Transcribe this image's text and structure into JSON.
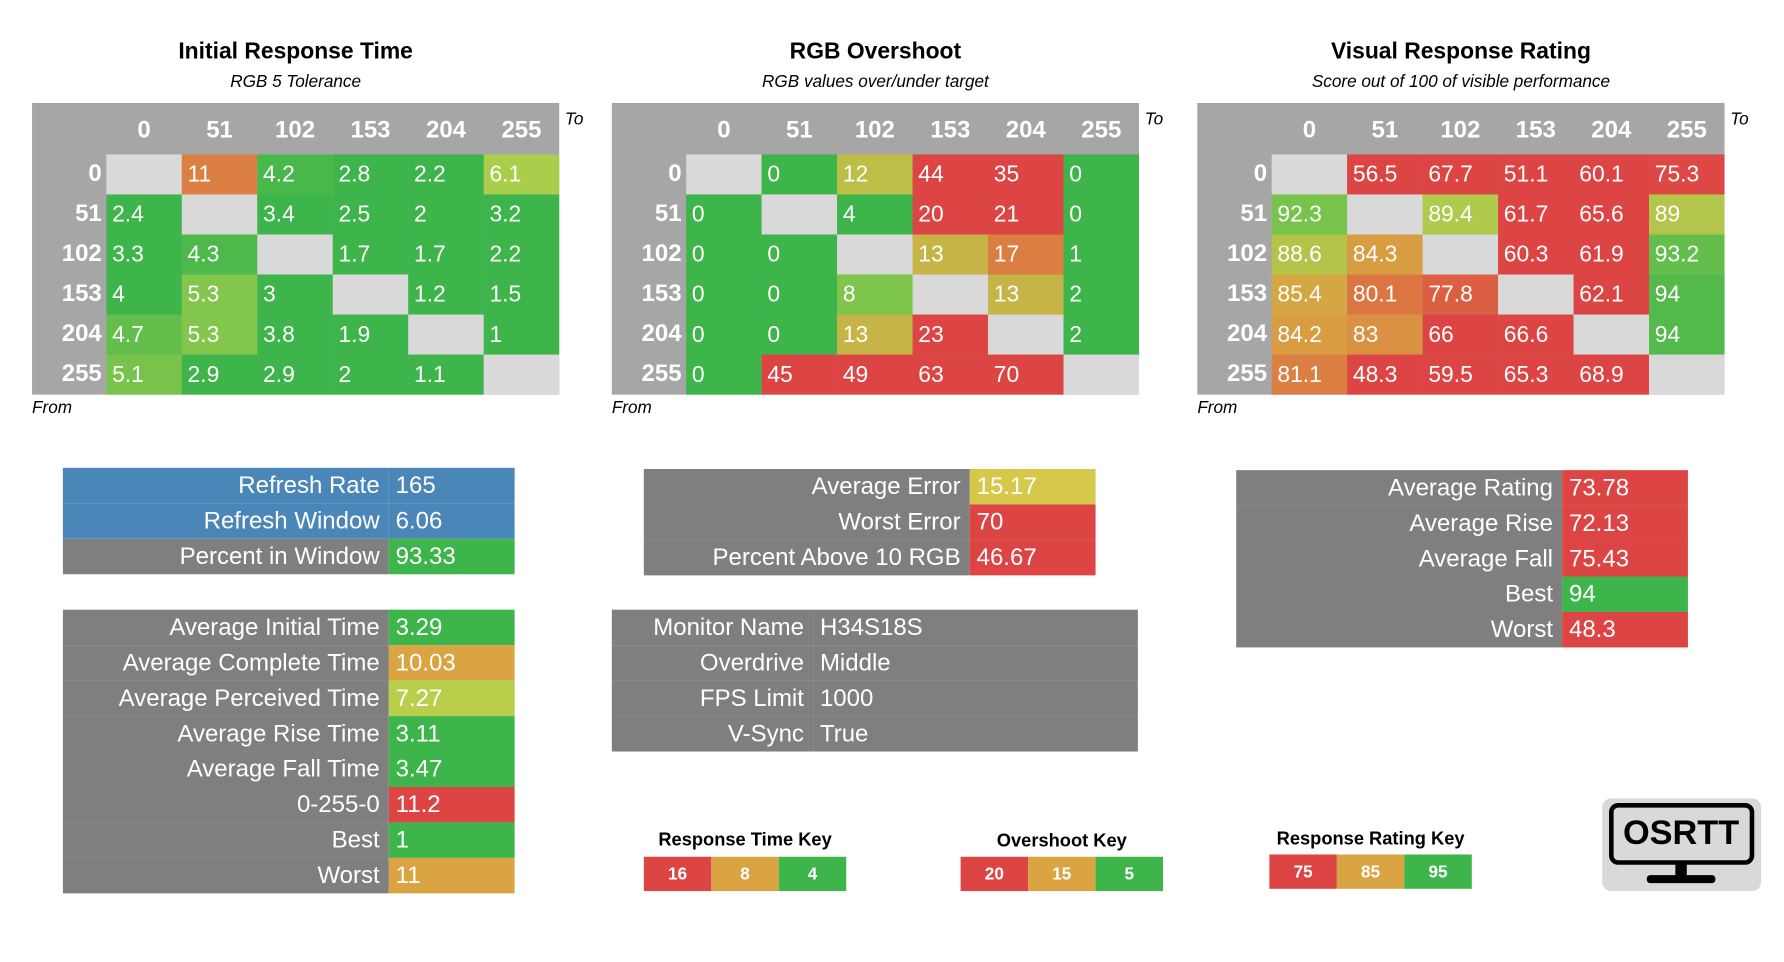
{
  "keys": [
    {
      "title": "Response Time Key",
      "values": [
        16,
        8,
        4
      ],
      "colors": [
        "#dd4444",
        "#d9a441",
        "#3db54b"
      ]
    },
    {
      "title": "Overshoot Key",
      "values": [
        20,
        15,
        5
      ],
      "colors": [
        "#dd4444",
        "#d9a441",
        "#3db54b"
      ]
    },
    {
      "title": "Response Rating Key",
      "values": [
        75,
        85,
        95
      ],
      "colors": [
        "#dd4444",
        "#d9a441",
        "#3db54b"
      ]
    }
  ],
  "matrices": [
    {
      "title": "Initial Response Time",
      "subtitle": "RGB 5 Tolerance",
      "to_label": "To",
      "from_label": "From",
      "key": 0,
      "levels": [
        0,
        51,
        102,
        153,
        204,
        255
      ],
      "rows": [
        [
          null,
          11,
          4.2,
          2.8,
          2.2,
          6.1
        ],
        [
          2.4,
          null,
          3.4,
          2.5,
          2,
          3.2
        ],
        [
          3.3,
          4.3,
          null,
          1.7,
          1.7,
          2.2
        ],
        [
          4,
          5.3,
          3,
          null,
          1.2,
          1.5
        ],
        [
          4.7,
          5.3,
          3.8,
          1.9,
          null,
          1
        ],
        [
          5.1,
          2.9,
          2.9,
          2,
          1.1,
          null
        ]
      ]
    },
    {
      "title": "RGB Overshoot",
      "subtitle": "RGB values over/under target",
      "to_label": "To",
      "from_label": "From",
      "key": 1,
      "levels": [
        0,
        51,
        102,
        153,
        204,
        255
      ],
      "rows": [
        [
          null,
          0,
          12,
          44,
          35,
          0
        ],
        [
          0,
          null,
          4,
          20,
          21,
          0
        ],
        [
          0,
          0,
          null,
          13,
          17,
          1
        ],
        [
          0,
          0,
          8,
          null,
          13,
          2
        ],
        [
          0,
          0,
          13,
          23,
          null,
          2
        ],
        [
          0,
          45,
          49,
          63,
          70,
          null
        ]
      ]
    },
    {
      "title": "Visual Response Rating",
      "subtitle": "Score out of 100 of visible performance",
      "to_label": "To",
      "from_label": "From",
      "key": 2,
      "levels": [
        0,
        51,
        102,
        153,
        204,
        255
      ],
      "rows": [
        [
          null,
          56.5,
          67.7,
          51.1,
          60.1,
          75.3
        ],
        [
          92.3,
          null,
          89.4,
          61.7,
          65.6,
          89
        ],
        [
          88.6,
          84.3,
          null,
          60.3,
          61.9,
          93.2
        ],
        [
          85.4,
          80.1,
          77.8,
          null,
          62.1,
          94
        ],
        [
          84.2,
          83,
          66,
          66.6,
          null,
          94
        ],
        [
          81.1,
          48.3,
          59.5,
          65.3,
          68.9,
          null
        ]
      ]
    }
  ],
  "stats": [
    {
      "rows": [
        {
          "label": "Refresh Rate",
          "value": 165,
          "color": "#4a86b8",
          "row_color": "#4a86b8"
        },
        {
          "label": "Refresh Window",
          "value": 6.06,
          "color": "#4a86b8",
          "row_color": "#4a86b8"
        },
        {
          "label": "Percent in Window",
          "value": 93.33,
          "color": "#3db54b"
        }
      ]
    },
    {
      "rows": [
        {
          "label": "Average Initial Time",
          "value": 3.29,
          "color": "#3db54b"
        },
        {
          "label": "Average Complete Time",
          "value": 10.03,
          "color": "#d9a441"
        },
        {
          "label": "Average Perceived Time",
          "value": 7.27,
          "color": "#b9cf4c"
        },
        {
          "label": "Average Rise Time",
          "value": 3.11,
          "color": "#3db54b"
        },
        {
          "label": "Average Fall Time",
          "value": 3.47,
          "color": "#3db54b"
        },
        {
          "label": "0-255-0",
          "value": 11.2,
          "color": "#dd4444"
        },
        {
          "label": "Best",
          "value": 1,
          "color": "#3db54b"
        },
        {
          "label": "Worst",
          "value": 11,
          "color": "#d9a441"
        }
      ]
    },
    {
      "rows": [
        {
          "label": "Average Error",
          "value": 15.17,
          "color": "#d6c84a"
        },
        {
          "label": "Worst Error",
          "value": 70,
          "color": "#dd4444"
        },
        {
          "label": "Percent Above 10 RGB",
          "value": 46.67,
          "color": "#dd4444"
        }
      ]
    },
    {
      "rows": [
        {
          "label": "Monitor Name",
          "value": "H34S18S"
        },
        {
          "label": "Overdrive",
          "value": "Middle"
        },
        {
          "label": "FPS Limit",
          "value": 1000
        },
        {
          "label": "V-Sync",
          "value": "True"
        }
      ]
    },
    {
      "rows": [
        {
          "label": "Average Rating",
          "value": 73.78,
          "color": "#dd4444"
        },
        {
          "label": "Average Rise",
          "value": 72.13,
          "color": "#dd4444"
        },
        {
          "label": "Average Fall",
          "value": 75.43,
          "color": "#dd4444"
        },
        {
          "label": "Best",
          "value": 94,
          "color": "#3db54b"
        },
        {
          "label": "Worst",
          "value": 48.3,
          "color": "#dd4444"
        }
      ]
    }
  ],
  "logo": "OSRTT"
}
